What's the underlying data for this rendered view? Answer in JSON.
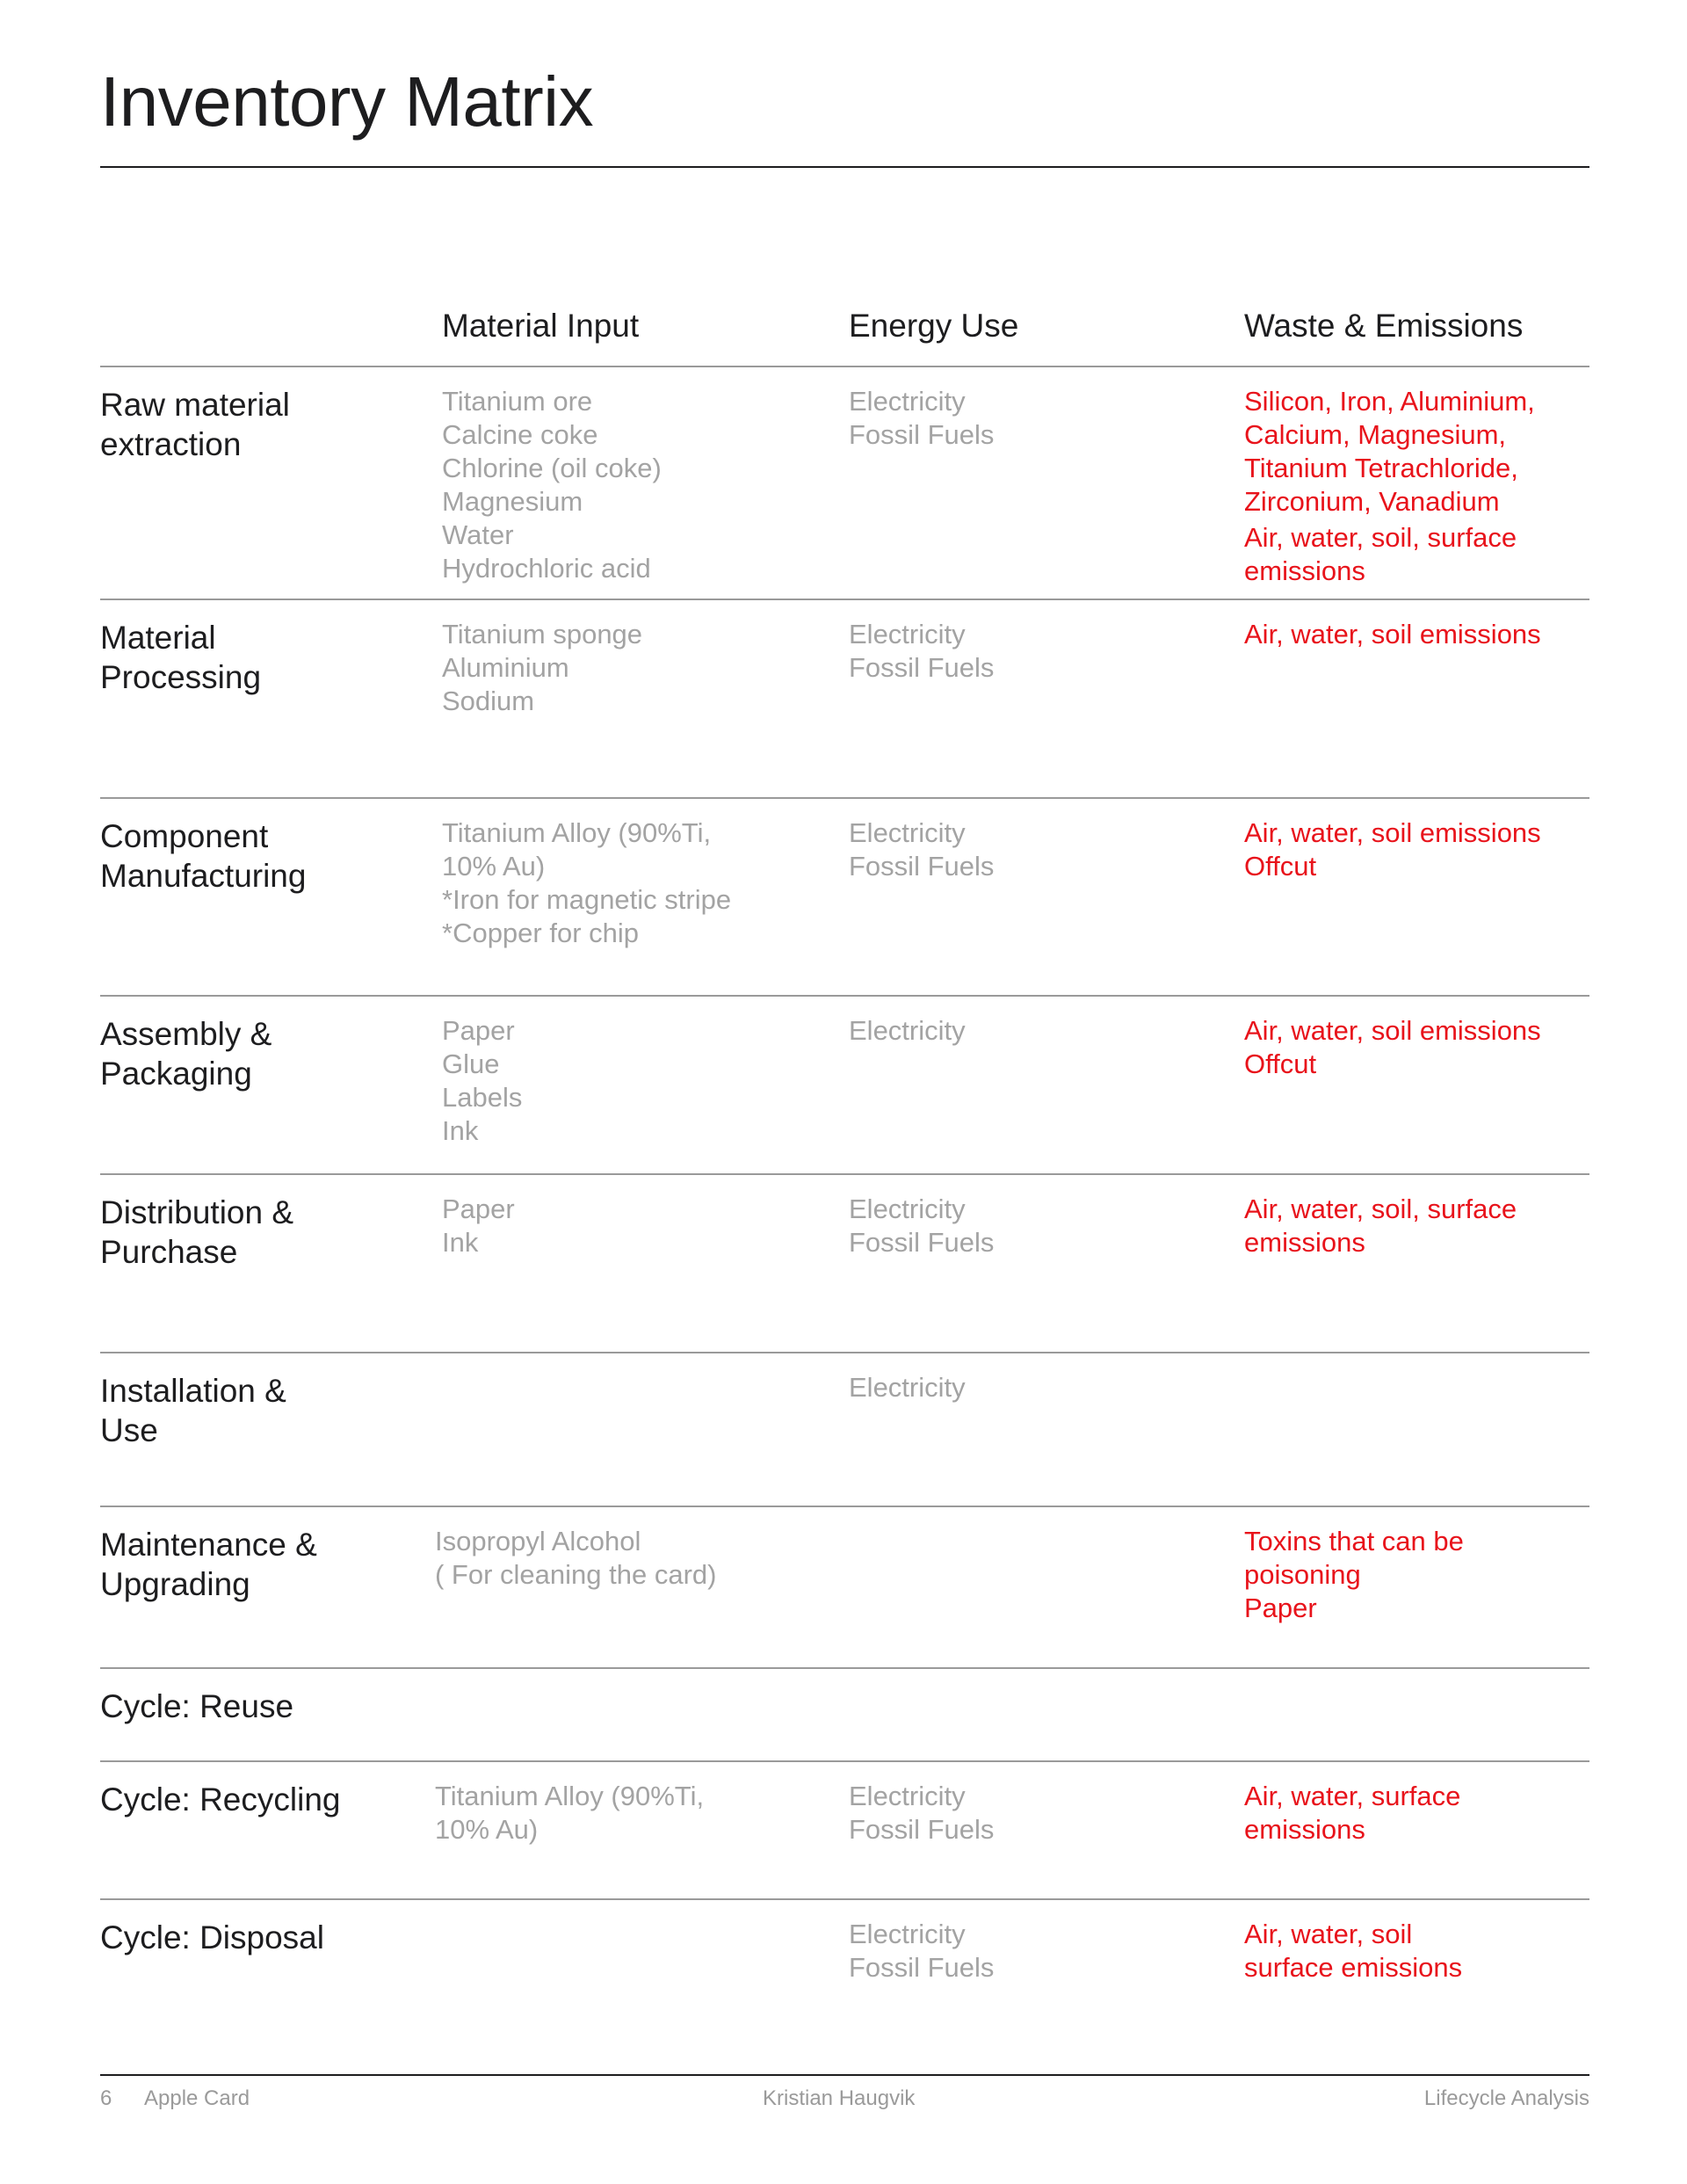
{
  "title": "Inventory Matrix",
  "columns": [
    "Material Input",
    "Energy Use",
    "Waste & Emissions"
  ],
  "colors": {
    "text": "#1d1d1f",
    "muted": "#a3a3a3",
    "emissions": "#e8131b"
  },
  "rows": [
    {
      "label": "Raw material\nextraction",
      "material": [
        "Titanium ore\nCalcine coke\nChlorine (oil coke)\nMagnesium\nWater\nHydrochloric acid"
      ],
      "energy": [
        "Electricity\nFossil Fuels"
      ],
      "waste": [
        "Silicon, Iron, Aluminium,\nCalcium, Magnesium,\nTitanium Tetrachloride,\nZirconium, Vanadium",
        "Air, water, soil, surface\nemissions"
      ]
    },
    {
      "label": "Material\nProcessing",
      "material": [
        "Titanium sponge\nAluminium\nSodium"
      ],
      "energy": [
        "Electricity\nFossil Fuels"
      ],
      "waste": [
        "Air, water, soil emissions"
      ]
    },
    {
      "label": "Component\nManufacturing",
      "material": [
        "Titanium Alloy (90%Ti,\n10% Au)\n*Iron for magnetic stripe\n*Copper for chip"
      ],
      "energy": [
        "Electricity\nFossil Fuels"
      ],
      "waste": [
        "Air, water, soil emissions\nOffcut"
      ]
    },
    {
      "label": "Assembly &\nPackaging",
      "material": [
        "Paper\nGlue\nLabels\nInk"
      ],
      "energy": [
        "Electricity"
      ],
      "waste": [
        "Air, water, soil emissions\nOffcut"
      ]
    },
    {
      "label": "Distribution &\nPurchase",
      "material": [
        "Paper\nInk"
      ],
      "energy": [
        "Electricity\nFossil Fuels"
      ],
      "waste": [
        "Air, water, soil, surface\nemissions"
      ]
    },
    {
      "label": "Installation &\nUse",
      "material": [],
      "energy": [
        "Electricity"
      ],
      "waste": []
    },
    {
      "label": "Maintenance &\nUpgrading",
      "material": [
        "Isopropyl Alcohol\n( For cleaning the card)"
      ],
      "energy": [],
      "waste": [
        "Toxins that can be\npoisoning\nPaper"
      ]
    },
    {
      "label": "Cycle: Reuse",
      "material": [],
      "energy": [],
      "waste": []
    },
    {
      "label": "Cycle: Recycling",
      "material": [
        "Titanium Alloy (90%Ti,\n10% Au)"
      ],
      "energy": [
        "Electricity\nFossil Fuels"
      ],
      "waste": [
        "Air, water, surface\nemissions"
      ]
    },
    {
      "label": "Cycle: Disposal",
      "material": [],
      "energy": [
        "Electricity\nFossil Fuels"
      ],
      "waste": [
        "Air, water, soil\nsurface emissions"
      ]
    }
  ],
  "footer": {
    "page": "6",
    "doc": "Apple Card",
    "author": "Kristian Haugvik",
    "section": "Lifecycle Analysis"
  }
}
